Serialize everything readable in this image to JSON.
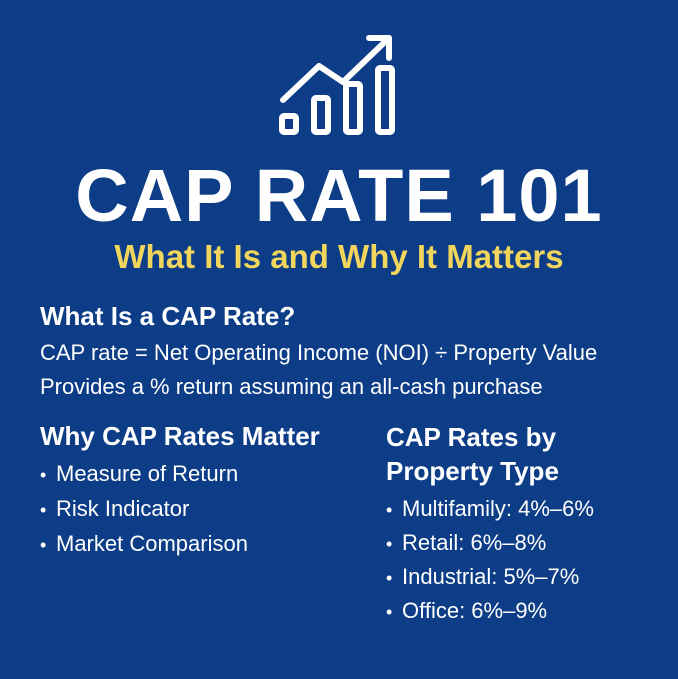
{
  "icon": {
    "name": "growth-chart-icon",
    "color": "#ffffff"
  },
  "title": "CAP RATE 101",
  "subtitle": "What It Is and Why It Matters",
  "what_is": {
    "heading": "What Is a CAP Rate?",
    "lines": [
      "CAP rate = Net Operating Income (NOI) ÷ Property Value",
      "Provides a % return assuming an all-cash purchase"
    ]
  },
  "why_matter": {
    "heading": "Why CAP Rates Matter",
    "items": [
      "Measure of Return",
      "Risk Indicator",
      "Market Comparison"
    ]
  },
  "by_type": {
    "heading": "CAP Rates by Property Type",
    "items": [
      "Multifamily: 4%–6%",
      "Retail: 6%–8%",
      "Industrial: 5%–7%",
      "Office: 6%–9%"
    ]
  },
  "colors": {
    "background": "#0d3d86",
    "text": "#ffffff",
    "accent": "#f2d55c"
  }
}
